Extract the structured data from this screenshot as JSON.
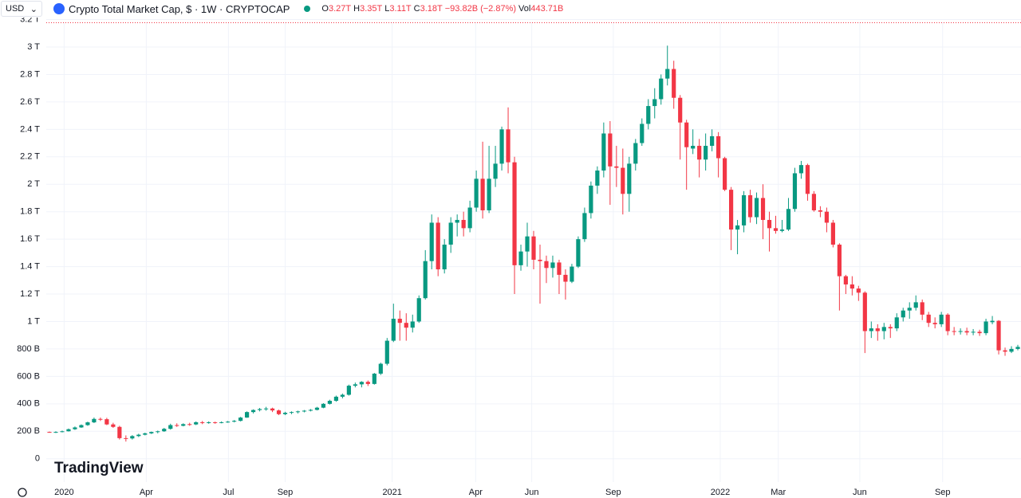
{
  "header": {
    "currency": "USD",
    "title": "Crypto Total Market Cap, $ · 1W · CRYPTOCAP",
    "ohlc": [
      {
        "label": "O",
        "value": "3.27T"
      },
      {
        "label": "H",
        "value": "3.35T"
      },
      {
        "label": "L",
        "value": "3.11T"
      },
      {
        "label": "C",
        "value": "3.18T"
      }
    ],
    "change": "−93.82B (−2.87%)",
    "volume": {
      "label": "Vol",
      "value": "443.71B"
    }
  },
  "watermark": "TradingView",
  "chart_data": {
    "type": "candlestick",
    "up_color": "#089981",
    "down_color": "#f23645",
    "grid": true,
    "xlim": [
      -0.5,
      152.5
    ],
    "xticks": [
      {
        "value": 2.3,
        "label": "2020"
      },
      {
        "value": 15.2,
        "label": "Apr"
      },
      {
        "value": 28.1,
        "label": "Jul"
      },
      {
        "value": 37.0,
        "label": "Sep"
      },
      {
        "value": 53.8,
        "label": "2021"
      },
      {
        "value": 66.9,
        "label": "Apr"
      },
      {
        "value": 75.7,
        "label": "Jun"
      },
      {
        "value": 88.5,
        "label": "Sep"
      },
      {
        "value": 105.3,
        "label": "2022"
      },
      {
        "value": 114.4,
        "label": "Mar"
      },
      {
        "value": 127.2,
        "label": "Jun"
      },
      {
        "value": 140.2,
        "label": "Sep"
      }
    ],
    "ylim": [
      -170,
      3180
    ],
    "yticks": [
      0,
      {
        "value": 200,
        "label": "200 B"
      },
      {
        "value": 400,
        "label": "400 B"
      },
      {
        "value": 600,
        "label": "600 B"
      },
      {
        "value": 800,
        "label": "800 B"
      },
      {
        "value": 1000,
        "label": "1 T"
      },
      {
        "value": 1200,
        "label": "1.2 T"
      },
      {
        "value": 1400,
        "label": "1.4 T"
      },
      {
        "value": 1600,
        "label": "1.6 T"
      },
      {
        "value": 1800,
        "label": "1.8 T"
      },
      {
        "value": 2000,
        "label": "2 T"
      },
      {
        "value": 2200,
        "label": "2.2 T"
      },
      {
        "value": 2400,
        "label": "2.4 T"
      },
      {
        "value": 2600,
        "label": "2.6 T"
      },
      {
        "value": 2800,
        "label": "2.8 T"
      },
      {
        "value": 3000,
        "label": "3 T"
      },
      {
        "value": 3200,
        "label": "3.2 T"
      }
    ],
    "open": [
      195,
      194,
      195,
      200,
      215,
      228,
      245,
      265,
      290,
      288,
      250,
      232,
      150,
      148,
      165,
      175,
      185,
      195,
      200,
      218,
      245,
      240,
      252,
      250,
      266,
      260,
      266,
      262,
      266,
      270,
      276,
      300,
      340,
      355,
      362,
      366,
      352,
      325,
      335,
      340,
      345,
      350,
      356,
      372,
      400,
      422,
      452,
      466,
      532,
      542,
      560,
      545,
      620,
      692,
      860,
      1020,
      990,
      955,
      1000,
      1170,
      1440,
      1720,
      1380,
      1560,
      1720,
      1740,
      1680,
      1830,
      2040,
      1810,
      2040,
      2150,
      2400,
      2160,
      1410,
      1510,
      1620,
      1450,
      1440,
      1390,
      1430,
      1340,
      1290,
      1400,
      1600,
      1790,
      1990,
      2100,
      2370,
      2130,
      2120,
      1930,
      2150,
      2300,
      2440,
      2570,
      2620,
      2770,
      2840,
      2630,
      2450,
      2260,
      2280,
      2180,
      2280,
      2350,
      2190,
      1960,
      1670,
      1700,
      1920,
      1760,
      1900,
      1740,
      1680,
      1660,
      1670,
      1820,
      2080,
      2140,
      1930,
      1810,
      1800,
      1720,
      1560,
      1330,
      1270,
      1240,
      1210,
      930,
      950,
      930,
      960,
      950,
      1030,
      1080,
      1100,
      1140,
      1050,
      990,
      980,
      1050,
      930,
      925,
      930,
      920,
      925,
      915,
      995,
      1005,
      790,
      780,
      800
    ],
    "high": [
      198,
      200,
      205,
      220,
      235,
      250,
      270,
      300,
      300,
      298,
      262,
      240,
      170,
      172,
      182,
      190,
      198,
      205,
      225,
      255,
      258,
      258,
      262,
      272,
      275,
      272,
      270,
      272,
      275,
      282,
      305,
      345,
      360,
      370,
      378,
      372,
      358,
      342,
      345,
      350,
      355,
      362,
      378,
      405,
      430,
      460,
      475,
      540,
      555,
      565,
      570,
      625,
      700,
      880,
      1130,
      1080,
      1060,
      1050,
      1190,
      1520,
      1780,
      1760,
      1600,
      1760,
      1780,
      1800,
      1880,
      2100,
      2310,
      2280,
      2280,
      2420,
      2560,
      2200,
      1560,
      1720,
      1660,
      1560,
      1480,
      1480,
      1450,
      1380,
      1420,
      1620,
      1830,
      2020,
      2130,
      2450,
      2460,
      2280,
      2260,
      2200,
      2330,
      2480,
      2620,
      2700,
      2800,
      3010,
      2900,
      2650,
      2470,
      2400,
      2330,
      2370,
      2400,
      2380,
      2200,
      1980,
      1740,
      1950,
      1960,
      1940,
      2000,
      1800,
      1770,
      1740,
      1900,
      2120,
      2170,
      2150,
      1950,
      1840,
      1830,
      1740,
      1570,
      1340,
      1330,
      1260,
      1220,
      1000,
      980,
      990,
      980,
      1060,
      1100,
      1140,
      1190,
      1160,
      1070,
      1030,
      1070,
      1060,
      960,
      950,
      955,
      945,
      940,
      1020,
      1040,
      1010,
      810,
      820,
      830
    ],
    "low": [
      190,
      188,
      192,
      198,
      210,
      225,
      240,
      260,
      275,
      245,
      225,
      140,
      125,
      140,
      158,
      170,
      180,
      185,
      196,
      212,
      232,
      236,
      240,
      245,
      252,
      255,
      255,
      258,
      262,
      265,
      272,
      298,
      330,
      345,
      350,
      340,
      318,
      318,
      325,
      330,
      338,
      345,
      352,
      368,
      395,
      415,
      440,
      460,
      520,
      520,
      530,
      540,
      610,
      680,
      850,
      860,
      860,
      920,
      990,
      1160,
      1380,
      1330,
      1350,
      1500,
      1620,
      1620,
      1650,
      1800,
      1750,
      1790,
      1980,
      2100,
      2080,
      1200,
      1370,
      1400,
      1380,
      1130,
      1280,
      1320,
      1200,
      1160,
      1280,
      1390,
      1580,
      1750,
      1930,
      2050,
      1850,
      1980,
      1780,
      1800,
      2100,
      2280,
      2400,
      2480,
      2580,
      2720,
      2550,
      2180,
      1960,
      2220,
      2050,
      2100,
      2240,
      2050,
      1950,
      1520,
      1490,
      1650,
      1720,
      1710,
      1600,
      1510,
      1640,
      1650,
      1660,
      1800,
      2040,
      1880,
      1800,
      1760,
      1650,
      1540,
      1080,
      1200,
      1190,
      1150,
      770,
      880,
      860,
      870,
      880,
      930,
      1000,
      1020,
      1080,
      1010,
      960,
      950,
      960,
      900,
      900,
      905,
      900,
      900,
      895,
      900,
      980,
      760,
      750,
      770,
      790
    ],
    "close": [
      194,
      195,
      200,
      215,
      228,
      245,
      265,
      290,
      288,
      250,
      232,
      150,
      148,
      165,
      175,
      185,
      195,
      200,
      218,
      245,
      240,
      252,
      250,
      266,
      260,
      266,
      262,
      266,
      270,
      276,
      300,
      340,
      355,
      362,
      366,
      352,
      325,
      335,
      340,
      345,
      350,
      356,
      372,
      400,
      422,
      452,
      466,
      532,
      542,
      560,
      545,
      620,
      692,
      860,
      1020,
      990,
      955,
      1000,
      1170,
      1440,
      1720,
      1380,
      1560,
      1720,
      1740,
      1680,
      1830,
      2040,
      1810,
      2040,
      2150,
      2400,
      2160,
      1410,
      1510,
      1620,
      1450,
      1440,
      1390,
      1430,
      1340,
      1290,
      1400,
      1600,
      1790,
      1990,
      2100,
      2370,
      2130,
      2120,
      1930,
      2150,
      2300,
      2440,
      2570,
      2620,
      2770,
      2840,
      2630,
      2450,
      2270,
      2280,
      2180,
      2280,
      2350,
      2190,
      1960,
      1670,
      1700,
      1920,
      1760,
      1900,
      1740,
      1680,
      1660,
      1670,
      1820,
      2080,
      2140,
      1930,
      1810,
      1800,
      1720,
      1560,
      1330,
      1270,
      1240,
      1210,
      930,
      950,
      930,
      960,
      950,
      1030,
      1080,
      1100,
      1140,
      1050,
      990,
      980,
      1050,
      930,
      925,
      930,
      920,
      925,
      915,
      1000,
      1005,
      790,
      780,
      800,
      815
    ]
  }
}
